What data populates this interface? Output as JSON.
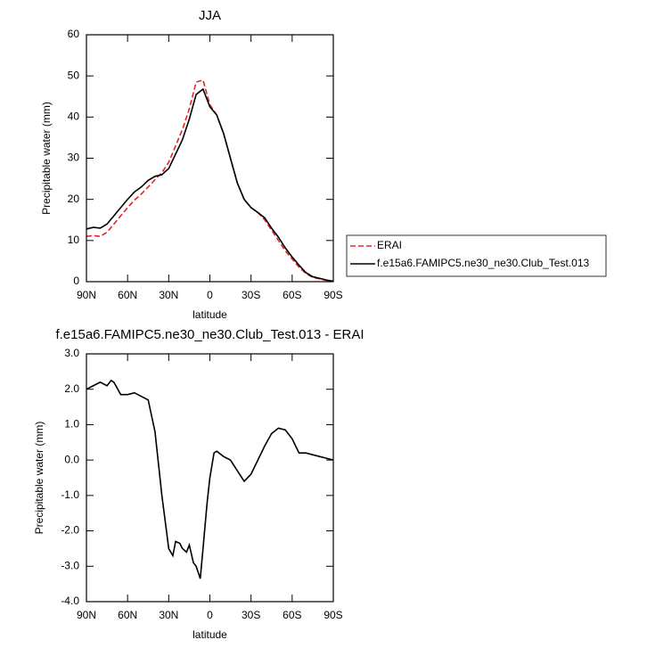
{
  "chart_data": [
    {
      "type": "line",
      "title": "JJA",
      "xlabel": "latitude",
      "ylabel": "Precipitable water (mm)",
      "x": [
        90,
        85,
        80,
        75,
        70,
        65,
        60,
        55,
        50,
        45,
        40,
        35,
        30,
        25,
        20,
        15,
        10,
        5,
        0,
        -5,
        -10,
        -15,
        -20,
        -25,
        -30,
        -35,
        -40,
        -45,
        -50,
        -55,
        -60,
        -65,
        -70,
        -75,
        -80,
        -85,
        -90
      ],
      "xlim": [
        90,
        -90
      ],
      "xticks": [
        {
          "value": 90,
          "label": "90N"
        },
        {
          "value": 60,
          "label": "60N"
        },
        {
          "value": 30,
          "label": "30N"
        },
        {
          "value": 0,
          "label": "0"
        },
        {
          "value": -30,
          "label": "30S"
        },
        {
          "value": -60,
          "label": "60S"
        },
        {
          "value": -90,
          "label": "90S"
        }
      ],
      "ylim": [
        0,
        60
      ],
      "yticks": [
        0,
        10,
        20,
        30,
        40,
        50,
        60
      ],
      "legend": "outside-right",
      "series": [
        {
          "name": "ERAI",
          "color": "#e3242b",
          "line_style": "dashed",
          "values": [
            11,
            11.2,
            11,
            12,
            14,
            16,
            18,
            19.8,
            21.3,
            23,
            24.8,
            26.5,
            29,
            33,
            37,
            42,
            48.5,
            49,
            43,
            40.5,
            36,
            30,
            24,
            20,
            18,
            16.8,
            15,
            12.5,
            10,
            7.5,
            5.5,
            3.5,
            2,
            1,
            0.7,
            0.3,
            0.1
          ]
        },
        {
          "name": "f.e15a6.FAMIPC5.ne30_ne30.Club_Test.013",
          "color": "#000000",
          "line_style": "solid",
          "values": [
            12.8,
            13.2,
            13,
            14,
            16,
            18,
            20,
            21.8,
            23,
            24.6,
            25.6,
            26,
            27.5,
            31,
            34.5,
            39.5,
            45.5,
            46.8,
            42.5,
            40.5,
            36,
            30,
            24,
            20,
            18,
            16.8,
            15.5,
            13,
            10.8,
            8.2,
            6,
            4,
            2.2,
            1.2,
            0.8,
            0.4,
            0.1
          ]
        }
      ]
    },
    {
      "type": "line",
      "title": "f.e15a6.FAMIPC5.ne30_ne30.Club_Test.013 - ERAI",
      "xlabel": "latitude",
      "ylabel": "Precipitable water (mm)",
      "x": [
        90,
        85,
        80,
        75,
        72,
        70,
        65,
        60,
        55,
        50,
        45,
        40,
        35,
        32,
        30,
        27,
        25,
        22,
        20,
        17,
        15,
        12,
        10,
        7,
        5,
        2,
        0,
        -3,
        -5,
        -10,
        -15,
        -20,
        -25,
        -30,
        -35,
        -40,
        -45,
        -50,
        -55,
        -60,
        -65,
        -70,
        -75,
        -80,
        -85,
        -90
      ],
      "xlim": [
        90,
        -90
      ],
      "xticks": [
        {
          "value": 90,
          "label": "90N"
        },
        {
          "value": 60,
          "label": "60N"
        },
        {
          "value": 30,
          "label": "30N"
        },
        {
          "value": 0,
          "label": "0"
        },
        {
          "value": -30,
          "label": "30S"
        },
        {
          "value": -60,
          "label": "60S"
        },
        {
          "value": -90,
          "label": "90S"
        }
      ],
      "ylim": [
        -4,
        3
      ],
      "yticks": [
        {
          "value": -4,
          "label": "-4.0"
        },
        {
          "value": -3,
          "label": "-3.0"
        },
        {
          "value": -2,
          "label": "-2.0"
        },
        {
          "value": -1,
          "label": "-1.0"
        },
        {
          "value": 0,
          "label": "0.0"
        },
        {
          "value": 1,
          "label": "1.0"
        },
        {
          "value": 2,
          "label": "2.0"
        },
        {
          "value": 3,
          "label": "3.0"
        }
      ],
      "series": [
        {
          "color": "#000000",
          "line_style": "solid",
          "values": [
            2.0,
            2.1,
            2.2,
            2.1,
            2.25,
            2.2,
            1.85,
            1.85,
            1.9,
            1.8,
            1.7,
            0.8,
            -1.0,
            -1.9,
            -2.5,
            -2.7,
            -2.3,
            -2.35,
            -2.5,
            -2.6,
            -2.4,
            -2.9,
            -3.0,
            -3.35,
            -2.5,
            -1.2,
            -0.5,
            0.2,
            0.25,
            0.1,
            0.0,
            -0.3,
            -0.6,
            -0.4,
            0.0,
            0.4,
            0.75,
            0.9,
            0.85,
            0.6,
            0.2,
            0.2,
            0.15,
            0.1,
            0.05,
            0.0
          ]
        }
      ]
    }
  ]
}
